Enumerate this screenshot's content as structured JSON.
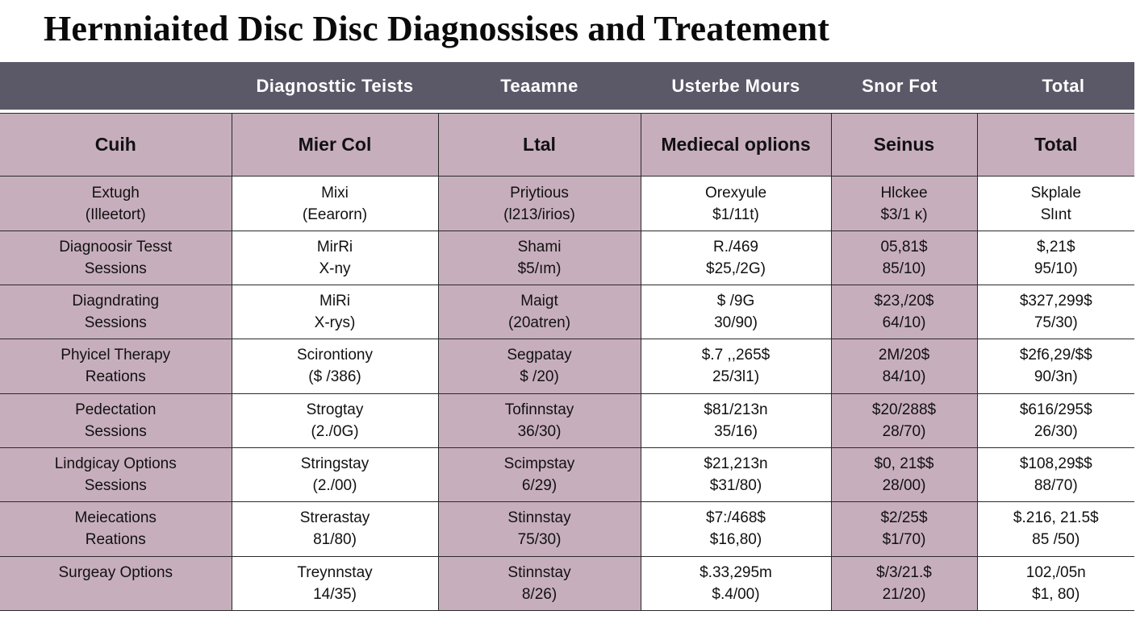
{
  "title": "Hernniaited  Disc Disc  Diagnossises and  Treatement",
  "top_header": [
    "Diagnosttic Teists",
    "Teaamne",
    "Usterbe Mours",
    "Snor Fot",
    "Total"
  ],
  "column_headers": [
    "Cuih",
    "Mier Col",
    "Ltal",
    "Mediecal oplions",
    "Seinus",
    "Total"
  ],
  "rows": [
    [
      [
        "Extugh",
        "(Illeetort)"
      ],
      [
        "Mixi",
        "(Eearorn)"
      ],
      [
        "Priytious",
        "(l213/irios)"
      ],
      [
        "Orexyule",
        "$1/11t)"
      ],
      [
        "Hlckee",
        "$3/1 κ)"
      ],
      [
        "Skplale",
        "Slınt"
      ]
    ],
    [
      [
        "Diagnoosir Tesst",
        "Sessions"
      ],
      [
        "MirRi",
        "X-ny"
      ],
      [
        "Shami",
        "$5/ım)"
      ],
      [
        "R./469",
        "$25,/2G)"
      ],
      [
        "05,81$",
        "85/10)"
      ],
      [
        "$,21$",
        "95/10)"
      ]
    ],
    [
      [
        "Diagndrating",
        "Sessions"
      ],
      [
        "MiRi",
        "X-rys)"
      ],
      [
        "Maigt",
        "(20atren)"
      ],
      [
        "$ /9G",
        "30/90)"
      ],
      [
        "$23,/20$",
        "64/10)"
      ],
      [
        "$327,299$",
        "75/30)"
      ]
    ],
    [
      [
        "Phyicel Therapy",
        "Reations"
      ],
      [
        "Scirontiony",
        "($ /386)"
      ],
      [
        "Segpatay",
        "$ /20)"
      ],
      [
        "$.7 ,,265$",
        "25/3l1)"
      ],
      [
        "2M/20$",
        "84/10)"
      ],
      [
        "$2f6,29/$$",
        "90/3n)"
      ]
    ],
    [
      [
        "Pedectation",
        "Sessions"
      ],
      [
        "Strogtay",
        "(2./0G)"
      ],
      [
        "Tofinnstay",
        "36/30)"
      ],
      [
        "$81/213n",
        "35/16)"
      ],
      [
        "$20/288$",
        "28/70)"
      ],
      [
        "$616/295$",
        "26/30)"
      ]
    ],
    [
      [
        "Lindgicay Options",
        "Sessions"
      ],
      [
        "Stringstay",
        "(2./00)"
      ],
      [
        "Scimpstay",
        "6/29)"
      ],
      [
        "$21,213n",
        "$31/80)"
      ],
      [
        "$0, 21$$",
        "28/00)"
      ],
      [
        "$108,29$$",
        "88/70)"
      ]
    ],
    [
      [
        "Meiecations",
        "Reations"
      ],
      [
        "Strerastay",
        "81/80)"
      ],
      [
        "Stinnstay",
        "75/30)"
      ],
      [
        "$7:/468$",
        "$16,80)"
      ],
      [
        "$2/25$",
        "$1/70)"
      ],
      [
        "$.216, 21.5$",
        "85 /50)"
      ]
    ],
    [
      [
        "Surgeay Options",
        ""
      ],
      [
        "Treynnstay",
        "14/35)"
      ],
      [
        "Stinnstay",
        "8/26)"
      ],
      [
        "$.33,295m",
        "$.4/00)"
      ],
      [
        "$/3/21.$",
        "21/20)"
      ],
      [
        "102,/05n",
        "$1, 80)"
      ]
    ]
  ],
  "colors": {
    "topbar": "#5b5868",
    "pink": "#c7aebd",
    "white": "#ffffff"
  }
}
